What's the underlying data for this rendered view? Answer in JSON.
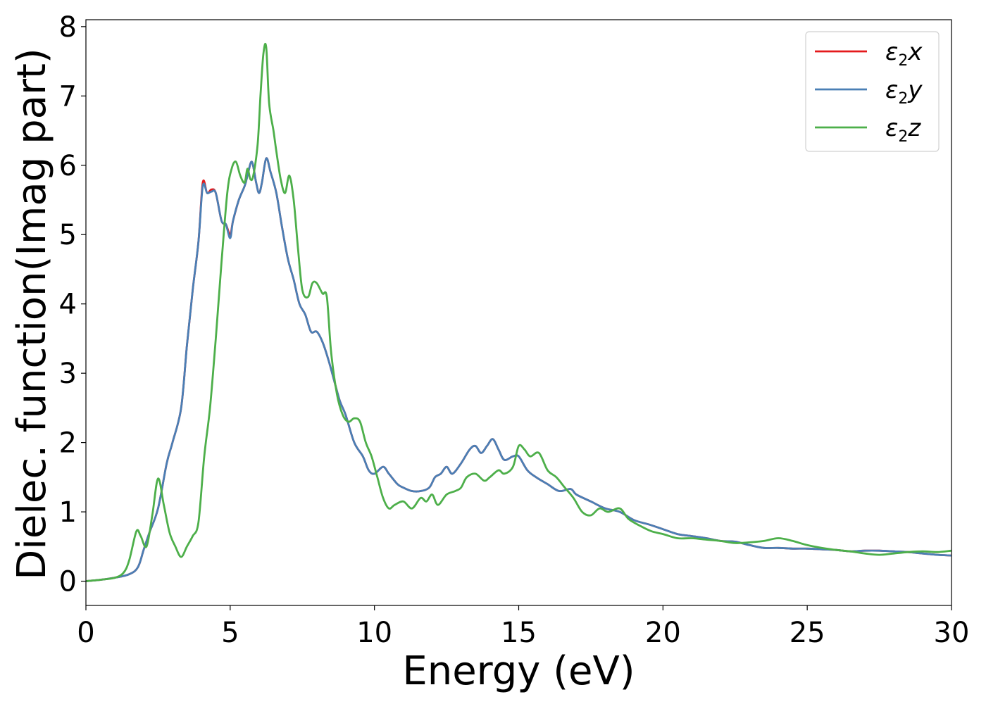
{
  "chart_data": {
    "type": "line",
    "title": "",
    "xlabel": "Energy (eV)",
    "ylabel": "Dielec. function(Imag part)",
    "xlim": [
      0,
      30
    ],
    "ylim": [
      -0.35,
      8.1
    ],
    "xticks": [
      0,
      5,
      10,
      15,
      20,
      25,
      30
    ],
    "yticks": [
      0,
      1,
      2,
      3,
      4,
      5,
      6,
      7,
      8
    ],
    "grid": false,
    "legend_position": "top-right",
    "series": [
      {
        "name": "ε2x",
        "color": "#e41a1c",
        "x": [
          0,
          0.5,
          1.0,
          1.5,
          1.8,
          2.0,
          2.2,
          2.5,
          2.8,
          3.0,
          3.3,
          3.5,
          3.7,
          3.9,
          4.05,
          4.2,
          4.35,
          4.5,
          4.7,
          4.85,
          5.0,
          5.1,
          5.3,
          5.5,
          5.6,
          5.75,
          5.9,
          6.0,
          6.1,
          6.25,
          6.4,
          6.6,
          6.8,
          7.0,
          7.2,
          7.4,
          7.6,
          7.8,
          8.0,
          8.2,
          8.4,
          8.6,
          8.8,
          9.0,
          9.3,
          9.6,
          9.8,
          10.0,
          10.3,
          10.5,
          10.8,
          11.0,
          11.3,
          11.6,
          11.9,
          12.1,
          12.3,
          12.5,
          12.7,
          13.0,
          13.3,
          13.5,
          13.7,
          13.9,
          14.1,
          14.3,
          14.5,
          14.8,
          15.0,
          15.3,
          15.6,
          16.0,
          16.4,
          16.8,
          17.0,
          17.5,
          18.0,
          18.5,
          19.0,
          19.5,
          20.0,
          20.5,
          21.0,
          21.5,
          22.0,
          22.5,
          23.0,
          23.5,
          24.0,
          24.5,
          25.0,
          25.5,
          26.0,
          26.5,
          27.0,
          27.5,
          28.0,
          28.5,
          29.0,
          29.5,
          30.0
        ],
        "y": [
          0.0,
          0.02,
          0.05,
          0.1,
          0.2,
          0.45,
          0.7,
          1.05,
          1.7,
          2.0,
          2.5,
          3.4,
          4.2,
          4.9,
          5.75,
          5.6,
          5.65,
          5.6,
          5.2,
          5.15,
          5.0,
          5.2,
          5.5,
          5.7,
          5.85,
          6.05,
          5.75,
          5.6,
          5.75,
          6.1,
          5.9,
          5.6,
          5.1,
          4.65,
          4.35,
          4.0,
          3.85,
          3.6,
          3.6,
          3.45,
          3.2,
          2.9,
          2.6,
          2.4,
          2.0,
          1.8,
          1.6,
          1.55,
          1.65,
          1.55,
          1.4,
          1.35,
          1.3,
          1.3,
          1.35,
          1.5,
          1.55,
          1.65,
          1.55,
          1.7,
          1.9,
          1.95,
          1.85,
          1.95,
          2.05,
          1.9,
          1.75,
          1.8,
          1.8,
          1.6,
          1.5,
          1.4,
          1.3,
          1.33,
          1.25,
          1.15,
          1.05,
          1.0,
          0.88,
          0.82,
          0.75,
          0.68,
          0.65,
          0.62,
          0.58,
          0.57,
          0.52,
          0.48,
          0.48,
          0.47,
          0.47,
          0.46,
          0.45,
          0.43,
          0.44,
          0.44,
          0.43,
          0.42,
          0.4,
          0.38,
          0.37
        ]
      },
      {
        "name": "ε2y",
        "color": "#4a7fb5",
        "x": [
          0,
          0.5,
          1.0,
          1.5,
          1.8,
          2.0,
          2.2,
          2.5,
          2.8,
          3.0,
          3.3,
          3.5,
          3.7,
          3.9,
          4.05,
          4.2,
          4.35,
          4.5,
          4.7,
          4.85,
          5.0,
          5.1,
          5.3,
          5.5,
          5.6,
          5.75,
          5.9,
          6.0,
          6.1,
          6.25,
          6.4,
          6.6,
          6.8,
          7.0,
          7.2,
          7.4,
          7.6,
          7.8,
          8.0,
          8.2,
          8.4,
          8.6,
          8.8,
          9.0,
          9.3,
          9.6,
          9.8,
          10.0,
          10.3,
          10.5,
          10.8,
          11.0,
          11.3,
          11.6,
          11.9,
          12.1,
          12.3,
          12.5,
          12.7,
          13.0,
          13.3,
          13.5,
          13.7,
          13.9,
          14.1,
          14.3,
          14.5,
          14.8,
          15.0,
          15.3,
          15.6,
          16.0,
          16.4,
          16.8,
          17.0,
          17.5,
          18.0,
          18.5,
          19.0,
          19.5,
          20.0,
          20.5,
          21.0,
          21.5,
          22.0,
          22.5,
          23.0,
          23.5,
          24.0,
          24.5,
          25.0,
          25.5,
          26.0,
          26.5,
          27.0,
          27.5,
          28.0,
          28.5,
          29.0,
          29.5,
          30.0
        ],
        "y": [
          0.0,
          0.02,
          0.05,
          0.1,
          0.2,
          0.45,
          0.7,
          1.05,
          1.7,
          2.0,
          2.5,
          3.4,
          4.2,
          4.9,
          5.7,
          5.6,
          5.62,
          5.6,
          5.2,
          5.15,
          4.95,
          5.2,
          5.5,
          5.7,
          5.85,
          6.05,
          5.75,
          5.6,
          5.75,
          6.1,
          5.9,
          5.6,
          5.1,
          4.65,
          4.35,
          4.0,
          3.85,
          3.6,
          3.6,
          3.45,
          3.2,
          2.9,
          2.6,
          2.4,
          2.0,
          1.8,
          1.6,
          1.55,
          1.65,
          1.55,
          1.4,
          1.35,
          1.3,
          1.3,
          1.35,
          1.5,
          1.55,
          1.65,
          1.55,
          1.7,
          1.9,
          1.95,
          1.85,
          1.95,
          2.05,
          1.9,
          1.75,
          1.8,
          1.8,
          1.6,
          1.5,
          1.4,
          1.3,
          1.33,
          1.25,
          1.15,
          1.05,
          1.0,
          0.88,
          0.82,
          0.75,
          0.68,
          0.65,
          0.62,
          0.58,
          0.57,
          0.52,
          0.48,
          0.48,
          0.47,
          0.47,
          0.46,
          0.45,
          0.43,
          0.44,
          0.44,
          0.43,
          0.42,
          0.4,
          0.38,
          0.37
        ]
      },
      {
        "name": "ε2z",
        "color": "#4daf4a",
        "x": [
          0,
          0.5,
          1.0,
          1.3,
          1.5,
          1.75,
          1.9,
          2.1,
          2.3,
          2.5,
          2.7,
          2.9,
          3.1,
          3.3,
          3.5,
          3.7,
          3.9,
          4.1,
          4.3,
          4.5,
          4.7,
          4.9,
          5.05,
          5.2,
          5.35,
          5.5,
          5.6,
          5.7,
          5.8,
          5.95,
          6.05,
          6.15,
          6.25,
          6.35,
          6.5,
          6.6,
          6.75,
          6.9,
          7.05,
          7.2,
          7.35,
          7.5,
          7.7,
          7.85,
          8.0,
          8.2,
          8.35,
          8.5,
          8.7,
          8.9,
          9.1,
          9.3,
          9.5,
          9.7,
          9.9,
          10.1,
          10.3,
          10.5,
          10.7,
          11.0,
          11.3,
          11.6,
          11.8,
          12.0,
          12.2,
          12.5,
          12.8,
          13.0,
          13.2,
          13.5,
          13.8,
          14.0,
          14.3,
          14.5,
          14.8,
          15.0,
          15.2,
          15.4,
          15.7,
          16.0,
          16.3,
          16.6,
          16.9,
          17.2,
          17.5,
          17.8,
          18.1,
          18.5,
          18.8,
          19.2,
          19.6,
          20.0,
          20.5,
          21.0,
          21.5,
          22.0,
          22.5,
          23.0,
          23.5,
          24.0,
          24.5,
          25.0,
          25.5,
          26.0,
          26.5,
          27.0,
          27.5,
          28.0,
          28.5,
          29.0,
          29.5,
          30.0
        ],
        "y": [
          0.0,
          0.02,
          0.05,
          0.12,
          0.3,
          0.72,
          0.65,
          0.5,
          0.95,
          1.48,
          1.1,
          0.7,
          0.5,
          0.35,
          0.5,
          0.65,
          0.85,
          1.8,
          2.5,
          3.5,
          4.6,
          5.6,
          5.95,
          6.05,
          5.85,
          5.75,
          5.95,
          5.8,
          5.85,
          6.3,
          7.0,
          7.6,
          7.7,
          6.9,
          6.5,
          6.2,
          5.8,
          5.6,
          5.85,
          5.5,
          4.8,
          4.2,
          4.1,
          4.3,
          4.3,
          4.15,
          4.1,
          3.3,
          2.7,
          2.4,
          2.3,
          2.35,
          2.3,
          2.0,
          1.8,
          1.5,
          1.2,
          1.05,
          1.1,
          1.15,
          1.05,
          1.2,
          1.15,
          1.25,
          1.1,
          1.25,
          1.3,
          1.35,
          1.5,
          1.55,
          1.45,
          1.5,
          1.6,
          1.55,
          1.65,
          1.95,
          1.9,
          1.8,
          1.85,
          1.6,
          1.5,
          1.35,
          1.2,
          1.0,
          0.95,
          1.05,
          1.0,
          1.05,
          0.9,
          0.8,
          0.72,
          0.68,
          0.62,
          0.62,
          0.6,
          0.58,
          0.55,
          0.56,
          0.58,
          0.62,
          0.58,
          0.52,
          0.48,
          0.45,
          0.43,
          0.4,
          0.38,
          0.4,
          0.42,
          0.43,
          0.42,
          0.44
        ]
      }
    ]
  }
}
